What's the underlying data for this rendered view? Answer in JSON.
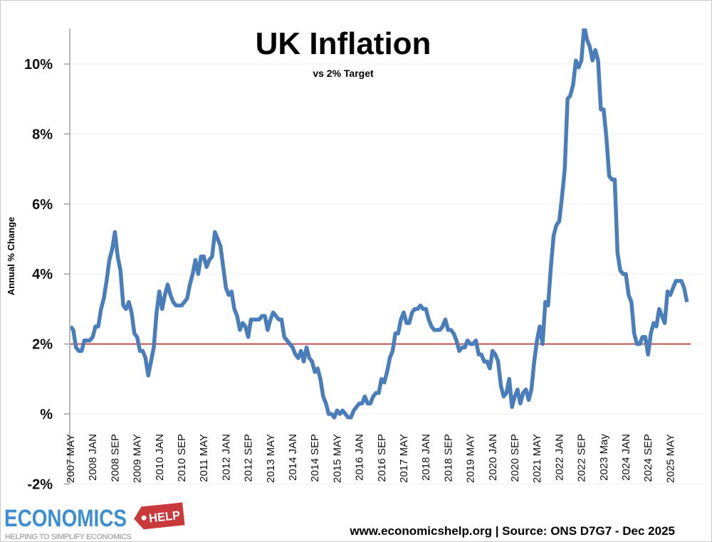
{
  "chart_data": {
    "type": "line",
    "title": "UK Inflation",
    "subtitle": "vs 2% Target",
    "ylabel": "Annual % Change",
    "xlabel": "",
    "ylim": [
      -2,
      11
    ],
    "yticks": [
      -2,
      0,
      2,
      4,
      6,
      8,
      10
    ],
    "ytick_labels": [
      "-2%",
      "%",
      "2%",
      "4%",
      "6%",
      "8%",
      "10%"
    ],
    "grid": "horizontal",
    "start": "2007 MAY",
    "x_tick_labels": [
      "2007 MAY",
      "2008 JAN",
      "2008 SEP",
      "2009 MAY",
      "2010 JAN",
      "2010 SEP",
      "2011 MAY",
      "2012 JAN",
      "2012 SEP",
      "2013 MAY",
      "2014 JAN",
      "2014 SEP",
      "2015 MAY",
      "2016 JAN",
      "2016 SEP",
      "2017 MAY",
      "2018 JAN",
      "2018 SEP",
      "2019 MAY",
      "2020 JAN",
      "2020 SEP",
      "2021 MAY",
      "2022 JAN",
      "2022 SEP",
      "2023 May",
      "2024 JAN",
      "2024 SEP",
      "2025 MAY"
    ],
    "series": [
      {
        "color": "#4a7ebb",
        "values": [
          2.5,
          2.4,
          1.9,
          1.8,
          1.8,
          2.1,
          2.1,
          2.1,
          2.2,
          2.5,
          2.5,
          3.0,
          3.3,
          3.8,
          4.4,
          4.7,
          5.2,
          4.5,
          4.1,
          3.1,
          3.0,
          3.2,
          2.9,
          2.3,
          2.2,
          1.8,
          1.8,
          1.6,
          1.1,
          1.5,
          1.9,
          2.9,
          3.5,
          3.0,
          3.4,
          3.7,
          3.4,
          3.2,
          3.1,
          3.1,
          3.1,
          3.2,
          3.3,
          3.7,
          4.0,
          4.4,
          4.0,
          4.5,
          4.5,
          4.2,
          4.4,
          4.5,
          5.2,
          5.0,
          4.8,
          4.2,
          3.6,
          3.4,
          3.5,
          3.0,
          2.8,
          2.4,
          2.6,
          2.5,
          2.2,
          2.7,
          2.7,
          2.7,
          2.7,
          2.8,
          2.8,
          2.4,
          2.7,
          2.9,
          2.8,
          2.7,
          2.7,
          2.2,
          2.1,
          2.0,
          1.9,
          1.7,
          1.6,
          1.8,
          1.5,
          1.9,
          1.6,
          1.5,
          1.2,
          1.3,
          1.0,
          0.5,
          0.3,
          0.0,
          0.0,
          -0.1,
          0.1,
          0.0,
          0.1,
          0.0,
          -0.1,
          -0.1,
          0.1,
          0.2,
          0.3,
          0.3,
          0.5,
          0.3,
          0.3,
          0.5,
          0.6,
          0.6,
          1.0,
          0.9,
          1.2,
          1.6,
          1.8,
          2.3,
          2.3,
          2.7,
          2.9,
          2.6,
          2.6,
          2.9,
          3.0,
          3.0,
          3.1,
          3.0,
          3.0,
          2.7,
          2.5,
          2.4,
          2.4,
          2.4,
          2.5,
          2.7,
          2.4,
          2.4,
          2.3,
          2.1,
          1.8,
          1.9,
          1.9,
          2.1,
          2.0,
          2.0,
          2.1,
          1.7,
          1.7,
          1.5,
          1.5,
          1.3,
          1.8,
          1.7,
          1.5,
          0.8,
          0.5,
          0.6,
          1.0,
          0.2,
          0.5,
          0.7,
          0.3,
          0.6,
          0.7,
          0.4,
          0.7,
          1.5,
          2.1,
          2.5,
          2.0,
          3.2,
          3.1,
          4.2,
          5.1,
          5.4,
          5.5,
          6.2,
          7.0,
          9.0,
          9.1,
          9.4,
          10.1,
          9.9,
          10.1,
          11.1,
          10.7,
          10.5,
          10.1,
          10.4,
          10.1,
          8.7,
          8.7,
          7.9,
          6.8,
          6.7,
          6.7,
          4.6,
          4.1,
          4.0,
          4.0,
          3.4,
          3.2,
          2.3,
          2.0,
          2.0,
          2.2,
          2.2,
          1.7,
          2.3,
          2.6,
          2.5,
          3.0,
          2.8,
          2.6,
          3.5,
          3.4,
          3.6,
          3.8,
          3.8,
          3.8,
          3.6,
          3.2
        ]
      },
      {
        "color": "#c0504d",
        "values_constant": 2
      }
    ]
  },
  "footer": {
    "source": "www.economicshelp.org | Source: ONS D7G7 - Dec 2025"
  },
  "logo": {
    "main": "ECONOMICS",
    "badge": "HELP",
    "tagline": "HELPING TO SIMPLIFY ECONOMICS"
  }
}
